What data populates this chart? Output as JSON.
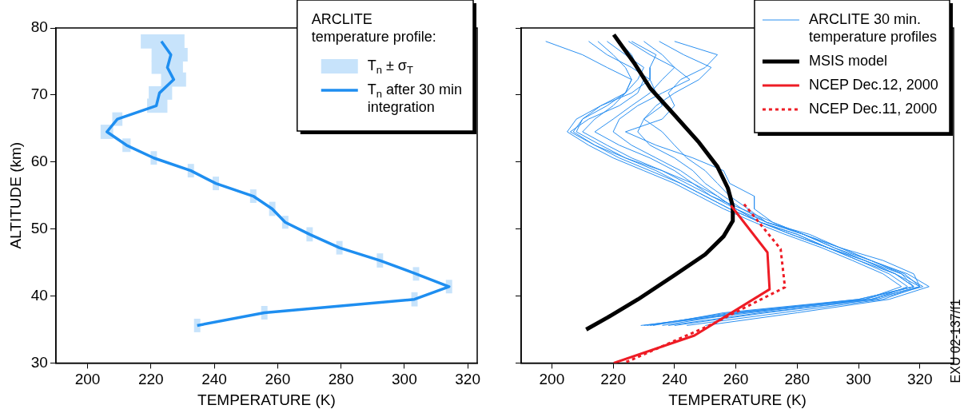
{
  "chart_data": [
    {
      "type": "line",
      "xlabel": "TEMPERATURE (K)",
      "ylabel": "ALTITUDE (km)",
      "legend_title": "ARCLITE temperature profile:",
      "legend": "top right",
      "xlim": [
        190,
        323
      ],
      "xticks": [
        200,
        220,
        240,
        260,
        280,
        300,
        320
      ],
      "ylim": [
        30,
        80
      ],
      "yticks": [
        30,
        40,
        50,
        60,
        70,
        80
      ],
      "series": [
        {
          "name": "T$_{n}$ after 30 min integration",
          "color": "#1e8ef0",
          "x": [
            223.3,
            226.3,
            225.2,
            227.2,
            222.7,
            221.7,
            209.4,
            206.1,
            212.3,
            220.9,
            232.6,
            240.5,
            252.3,
            258.3,
            262.4,
            270.1,
            279.5,
            292.3,
            303.7,
            314.1,
            303.2,
            255.8,
            234.6
          ],
          "values": [
            78.0,
            76.0,
            74.1,
            72.3,
            70.3,
            68.4,
            66.4,
            64.5,
            62.5,
            60.6,
            58.7,
            56.8,
            54.9,
            53.0,
            51.0,
            49.2,
            47.2,
            45.3,
            43.3,
            41.4,
            39.5,
            37.5,
            35.6
          ],
          "xerrors": [
            [
              216.8,
              230.6
            ],
            [
              220.2,
              231.6
            ],
            [
              220.2,
              230.1
            ],
            [
              223.2,
              231.1
            ],
            [
              219.3,
              226.7
            ],
            [
              218.8,
              225.2
            ],
            [
              207.8,
              211.0
            ],
            [
              204.1,
              208.1
            ],
            [
              211.0,
              213.6
            ],
            [
              219.9,
              221.9
            ],
            [
              231.6,
              233.6
            ],
            [
              239.5,
              241.5
            ],
            [
              251.3,
              253.3
            ],
            [
              257.3,
              259.3
            ],
            [
              261.4,
              263.4
            ],
            [
              269.1,
              271.1
            ],
            [
              278.5,
              280.5
            ],
            [
              291.3,
              293.3
            ],
            [
              302.7,
              304.7
            ],
            [
              313.1,
              315.1
            ],
            [
              302.2,
              304.2
            ],
            [
              254.8,
              256.8
            ],
            [
              233.6,
              235.6
            ]
          ]
        }
      ],
      "annotations": [
        "T$_{n}$ ± σ$_{T}$"
      ]
    },
    {
      "type": "line",
      "xlabel": "TEMPERATURE (K)",
      "legend": "top right",
      "tick_labels": "x",
      "xlim": [
        190,
        331
      ],
      "xticks": [
        200,
        220,
        240,
        260,
        280,
        300,
        320
      ],
      "ylim": [
        30,
        80
      ],
      "yticks": [
        30,
        40,
        50,
        60,
        70,
        80
      ],
      "annotations": [
        "EXU 02-137/f1"
      ],
      "series": [
        {
          "name": "ARCLITE 30 min. temperature profiles",
          "color": "#2a8ff0",
          "x": [
            215,
            220,
            224,
            226,
            224,
            220,
            214,
            210,
            218,
            226,
            236,
            244,
            252,
            262,
            272,
            282,
            292,
            302,
            312,
            318,
            300,
            260,
            230
          ],
          "values": [
            78.0,
            76.0,
            74.1,
            72.3,
            70.3,
            68.4,
            66.4,
            64.5,
            62.5,
            60.6,
            58.7,
            56.8,
            54.9,
            53.0,
            51.0,
            49.2,
            47.2,
            45.3,
            43.3,
            41.4,
            39.5,
            37.5,
            35.6
          ]
        },
        {
          "color": "#2a8ff0",
          "x": [
            222,
            226,
            228,
            230,
            228,
            222,
            212,
            206,
            214,
            222,
            232,
            242,
            250,
            258,
            268,
            280,
            290,
            300,
            310,
            316,
            305,
            270,
            240
          ],
          "values": [
            78.0,
            76.0,
            74.1,
            72.3,
            70.3,
            68.4,
            66.4,
            64.5,
            62.5,
            60.6,
            58.7,
            56.8,
            54.9,
            53.0,
            51.0,
            49.2,
            47.2,
            45.3,
            43.3,
            41.4,
            39.5,
            37.5,
            35.6
          ]
        },
        {
          "color": "#2a8ff0",
          "x": [
            198,
            210,
            218,
            226,
            224,
            216,
            208,
            205,
            212,
            220,
            230,
            240,
            248,
            256,
            266,
            276,
            288,
            298,
            308,
            314,
            302,
            265,
            229
          ],
          "values": [
            78.0,
            76.0,
            74.1,
            72.3,
            70.3,
            68.4,
            66.4,
            64.5,
            62.5,
            60.6,
            58.7,
            56.8,
            54.9,
            53.0,
            51.0,
            49.2,
            47.2,
            45.3,
            43.3,
            41.4,
            39.5,
            37.5,
            35.6
          ]
        },
        {
          "color": "#2a8ff0",
          "x": [
            235,
            243,
            252,
            248,
            240,
            234,
            230,
            228,
            232,
            240,
            246,
            250,
            256,
            262,
            270,
            284,
            294,
            304,
            316,
            323,
            310,
            280,
            250
          ],
          "values": [
            78.0,
            76.0,
            74.1,
            72.3,
            70.3,
            68.4,
            66.4,
            64.5,
            62.5,
            60.6,
            58.7,
            56.8,
            54.9,
            53.0,
            51.0,
            49.2,
            47.2,
            45.3,
            43.3,
            41.4,
            39.5,
            37.5,
            35.6
          ]
        },
        {
          "color": "#2a8ff0",
          "x": [
            225,
            232,
            240,
            245,
            236,
            228,
            222,
            220,
            226,
            234,
            242,
            248,
            254,
            260,
            268,
            278,
            290,
            300,
            312,
            320,
            304,
            262,
            236
          ],
          "values": [
            78.0,
            76.0,
            74.1,
            72.3,
            70.3,
            68.4,
            66.4,
            64.5,
            62.5,
            60.6,
            58.7,
            56.8,
            54.9,
            53.0,
            51.0,
            49.2,
            47.2,
            45.3,
            43.3,
            41.4,
            39.5,
            37.5,
            35.6
          ]
        },
        {
          "color": "#2a8ff0",
          "x": [
            240,
            254,
            250,
            242,
            238,
            240,
            236,
            224,
            234,
            246,
            256,
            258,
            266,
            266,
            272,
            282,
            294,
            308,
            318,
            320,
            308,
            275,
            244
          ],
          "values": [
            78.0,
            76.0,
            74.1,
            72.3,
            70.3,
            68.4,
            66.4,
            64.5,
            62.5,
            60.6,
            58.7,
            56.8,
            54.9,
            53.0,
            51.0,
            49.2,
            47.2,
            45.3,
            43.3,
            41.4,
            39.5,
            37.5,
            35.6
          ]
        },
        {
          "color": "#2a8ff0",
          "x": [
            212,
            218,
            226,
            232,
            226,
            216,
            210,
            208,
            216,
            224,
            234,
            242,
            250,
            258,
            268,
            278,
            290,
            302,
            314,
            321,
            306,
            268,
            238
          ],
          "values": [
            78.0,
            76.0,
            74.1,
            72.3,
            70.3,
            68.4,
            66.4,
            64.5,
            62.5,
            60.6,
            58.7,
            56.8,
            54.9,
            53.0,
            51.0,
            49.2,
            47.2,
            45.3,
            43.3,
            41.4,
            39.5,
            37.5,
            35.6
          ]
        },
        {
          "color": "#2a8ff0",
          "x": [
            218,
            224,
            230,
            228,
            224,
            218,
            210,
            207,
            214,
            224,
            236,
            246,
            254,
            260,
            270,
            282,
            294,
            304,
            315,
            320,
            304,
            262,
            232
          ],
          "values": [
            78.0,
            76.0,
            74.1,
            72.3,
            70.3,
            68.4,
            66.4,
            64.5,
            62.5,
            60.6,
            58.7,
            56.8,
            54.9,
            53.0,
            51.0,
            49.2,
            47.2,
            45.3,
            43.3,
            41.4,
            39.5,
            37.5,
            35.6
          ]
        },
        {
          "color": "#2a8ff0",
          "x": [
            230,
            236,
            240,
            236,
            232,
            226,
            220,
            214,
            222,
            232,
            240,
            246,
            252,
            260,
            268,
            280,
            290,
            302,
            312,
            318,
            302,
            258,
            231
          ],
          "values": [
            78.0,
            76.0,
            74.1,
            72.3,
            70.3,
            68.4,
            66.4,
            64.5,
            62.5,
            60.6,
            58.7,
            56.8,
            54.9,
            53.0,
            51.0,
            49.2,
            47.2,
            45.3,
            43.3,
            41.4,
            39.5,
            37.5,
            35.6
          ]
        },
        {
          "color": "#2a8ff0",
          "x": [
            226,
            234,
            232,
            232,
            234,
            236,
            230,
            236,
            240,
            244,
            250,
            254,
            258,
            264,
            270,
            282,
            292,
            304,
            314,
            318,
            300,
            256,
            233
          ],
          "values": [
            78.0,
            76.0,
            74.1,
            72.3,
            70.3,
            68.4,
            66.4,
            64.5,
            62.5,
            60.6,
            58.7,
            56.8,
            54.9,
            53.0,
            51.0,
            49.2,
            47.2,
            45.3,
            43.3,
            41.4,
            39.5,
            37.5,
            35.6
          ]
        },
        {
          "name": "MSIS model",
          "color": "#000000",
          "x": [
            220.2,
            227.1,
            232.1,
            240,
            248,
            254,
            257.4,
            259,
            259,
            256,
            250,
            240,
            228.1,
            218.2,
            211.2
          ],
          "values": [
            79.0,
            74.6,
            71.0,
            67.0,
            62.9,
            59.3,
            56.1,
            53.4,
            51.2,
            48.9,
            46.2,
            43.1,
            39.5,
            36.8,
            35.0
          ]
        },
        {
          "name": "NCEP Dec.12, 2000",
          "color": "#ee1c25",
          "x": [
            258.4,
            270.3,
            271,
            246.5,
            220.2
          ],
          "values": [
            53.5,
            46.5,
            41.0,
            34.1,
            30.0
          ]
        },
        {
          "name": "NCEP Dec.11, 2000",
          "color": "#ee1c25",
          "line_style": "dotted",
          "x": [
            262.7,
            274.6,
            276,
            251.4,
            223.6
          ],
          "values": [
            53.7,
            47.0,
            41.3,
            35.6,
            30.0
          ]
        }
      ]
    }
  ]
}
